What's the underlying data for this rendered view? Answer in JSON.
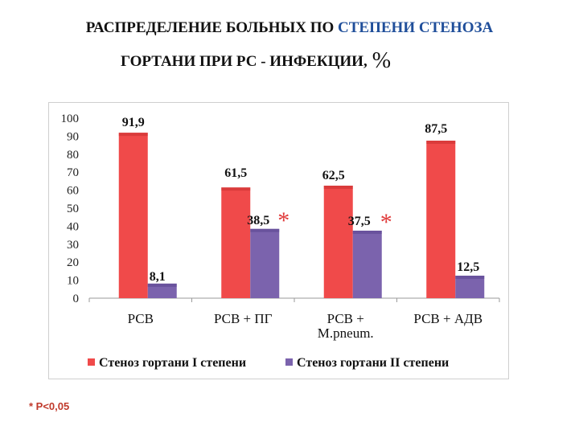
{
  "title": {
    "line1_part1": "РАСПРЕДЕЛЕНИЕ БОЛЬНЫХ ПО ",
    "line1_part2": "СТЕПЕНИ СТЕНОЗА",
    "line2": "ГОРТАНИ ПРИ РС - ИНФЕКЦИИ,",
    "line2_unit": "%"
  },
  "footnote": "* P<0,05",
  "colors": {
    "series1": "#f04a4a",
    "series2": "#7b63ad",
    "significance_star": "#e03a3a",
    "title_highlight": "#1f4e9a"
  },
  "chart_data": {
    "type": "bar",
    "categories": [
      "РСВ",
      "РСВ + ПГ",
      "РСВ + М.pneum.",
      "РСВ + АДВ"
    ],
    "category_lines": [
      [
        "РСВ"
      ],
      [
        "РСВ + ПГ"
      ],
      [
        "РСВ +",
        "М.pneum."
      ],
      [
        "РСВ + АДВ"
      ]
    ],
    "series": [
      {
        "name": "Стеноз гортани I степени",
        "values": [
          91.9,
          61.5,
          62.5,
          87.5
        ],
        "labels": [
          "91,9",
          "61,5",
          "62,5",
          "87,5"
        ]
      },
      {
        "name": "Стеноз гортани II степени",
        "values": [
          8.1,
          38.5,
          37.5,
          12.5
        ],
        "labels": [
          "8,1",
          "38,5",
          "37,5",
          "12,5"
        ]
      }
    ],
    "significance_marks": [
      {
        "category": "РСВ + ПГ",
        "series": "Стеноз гортани II степени",
        "symbol": "*"
      },
      {
        "category": "РСВ + М.pneum.",
        "series": "Стеноз гортани II степени",
        "symbol": "*"
      }
    ],
    "ylim": [
      0,
      100
    ],
    "yticks": [
      "0",
      "10",
      "20",
      "30",
      "40",
      "50",
      "60",
      "70",
      "80",
      "90",
      "100"
    ],
    "grid": false,
    "legend_position": "bottom"
  }
}
